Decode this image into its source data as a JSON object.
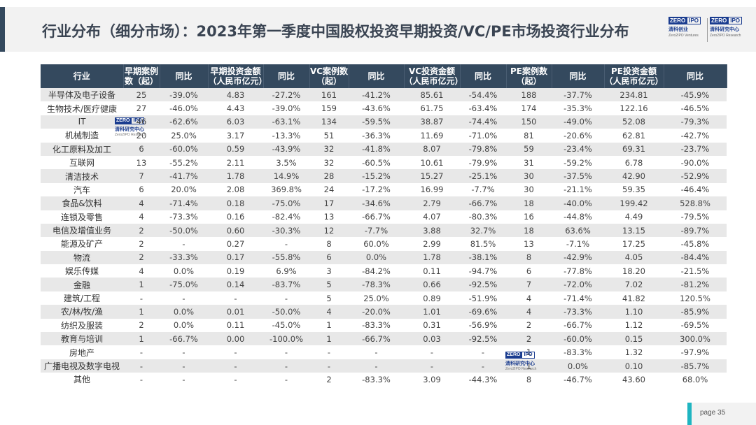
{
  "title": "行业分布（细分市场）：2023年第一季度中国股权投资早期投资/VC/PE市场投资行业分布",
  "logo": {
    "zero": "ZERO",
    "ipo": "IPO",
    "cn_left": "清科创业",
    "cn_right": "清科研究中心",
    "en_left": "Zero2IPO Ventures",
    "en_right": "Zero2IPO Research"
  },
  "watermark": {
    "zero": "ZERO",
    "ipo": "IPO",
    "cn": "清科研究中心",
    "en": "Zero2IPO Research"
  },
  "headers": [
    "行业",
    "早期案例数（起）",
    "同比",
    "早期投资金额（人民币亿元）",
    "同比",
    "VC案例数（起）",
    "同比",
    "VC投资金额（人民币亿元）",
    "同比",
    "PE案例数（起）",
    "同比",
    "PE投资金额（人民币亿元）",
    "同比"
  ],
  "rows": [
    [
      "半导体及电子设备",
      "25",
      "-39.0%",
      "4.83",
      "-27.2%",
      "161",
      "-41.2%",
      "85.61",
      "-54.4%",
      "188",
      "-37.7%",
      "234.81",
      "-45.9%"
    ],
    [
      "生物技术/医疗健康",
      "27",
      "-46.0%",
      "4.43",
      "-39.0%",
      "159",
      "-43.6%",
      "61.75",
      "-63.4%",
      "174",
      "-35.3%",
      "122.16",
      "-46.5%"
    ],
    [
      "IT",
      "46",
      "-62.6%",
      "6.03",
      "-63.1%",
      "134",
      "-59.5%",
      "38.87",
      "-74.4%",
      "150",
      "-49.0%",
      "52.08",
      "-79.3%"
    ],
    [
      "机械制造",
      "20",
      "25.0%",
      "3.17",
      "-13.3%",
      "51",
      "-36.3%",
      "11.69",
      "-71.0%",
      "81",
      "-20.6%",
      "62.81",
      "-42.7%"
    ],
    [
      "化工原料及加工",
      "6",
      "-60.0%",
      "0.59",
      "-43.9%",
      "32",
      "-41.8%",
      "8.07",
      "-79.8%",
      "59",
      "-23.4%",
      "69.31",
      "-23.7%"
    ],
    [
      "互联网",
      "13",
      "-55.2%",
      "2.11",
      "3.5%",
      "32",
      "-60.5%",
      "10.61",
      "-79.9%",
      "31",
      "-59.2%",
      "6.78",
      "-90.0%"
    ],
    [
      "清洁技术",
      "7",
      "-41.7%",
      "1.78",
      "14.9%",
      "28",
      "-15.2%",
      "15.27",
      "-25.1%",
      "30",
      "-37.5%",
      "42.90",
      "-52.9%"
    ],
    [
      "汽车",
      "6",
      "20.0%",
      "2.08",
      "369.8%",
      "24",
      "-17.2%",
      "16.99",
      "-7.7%",
      "30",
      "-21.1%",
      "59.35",
      "-46.4%"
    ],
    [
      "食品&饮料",
      "4",
      "-71.4%",
      "0.18",
      "-75.0%",
      "17",
      "-34.6%",
      "2.79",
      "-66.7%",
      "18",
      "-40.0%",
      "199.42",
      "528.8%"
    ],
    [
      "连锁及零售",
      "4",
      "-73.3%",
      "0.16",
      "-82.4%",
      "13",
      "-66.7%",
      "4.07",
      "-80.3%",
      "16",
      "-44.8%",
      "4.49",
      "-79.5%"
    ],
    [
      "电信及增值业务",
      "2",
      "-50.0%",
      "0.60",
      "-30.3%",
      "12",
      "-7.7%",
      "3.88",
      "32.7%",
      "18",
      "63.6%",
      "13.15",
      "-89.7%"
    ],
    [
      "能源及矿产",
      "2",
      "-",
      "0.27",
      "-",
      "8",
      "60.0%",
      "2.99",
      "81.5%",
      "13",
      "-7.1%",
      "17.25",
      "-45.8%"
    ],
    [
      "物流",
      "2",
      "-33.3%",
      "0.17",
      "-55.8%",
      "6",
      "0.0%",
      "1.78",
      "-38.1%",
      "8",
      "-42.9%",
      "4.05",
      "-84.4%"
    ],
    [
      "娱乐传媒",
      "4",
      "0.0%",
      "0.19",
      "6.9%",
      "3",
      "-84.2%",
      "0.11",
      "-94.7%",
      "6",
      "-77.8%",
      "18.20",
      "-21.5%"
    ],
    [
      "金融",
      "1",
      "-75.0%",
      "0.14",
      "-83.7%",
      "5",
      "-78.3%",
      "0.66",
      "-92.5%",
      "7",
      "-72.0%",
      "7.02",
      "-81.2%"
    ],
    [
      "建筑/工程",
      "-",
      "-",
      "-",
      "-",
      "5",
      "25.0%",
      "0.89",
      "-51.9%",
      "4",
      "-71.4%",
      "41.82",
      "120.5%"
    ],
    [
      "农/林/牧/渔",
      "1",
      "0.0%",
      "0.01",
      "-50.0%",
      "4",
      "-20.0%",
      "1.01",
      "-69.6%",
      "4",
      "-73.3%",
      "1.10",
      "-85.9%"
    ],
    [
      "纺织及服装",
      "2",
      "0.0%",
      "0.11",
      "-45.0%",
      "1",
      "-83.3%",
      "0.31",
      "-56.9%",
      "2",
      "-66.7%",
      "1.12",
      "-69.5%"
    ],
    [
      "教育与培训",
      "1",
      "-66.7%",
      "0.00",
      "-100.0%",
      "1",
      "-66.7%",
      "0.03",
      "-92.5%",
      "2",
      "-60.0%",
      "0.15",
      "300.0%"
    ],
    [
      "房地产",
      "-",
      "-",
      "-",
      "-",
      "-",
      "-",
      "-",
      "-",
      "1",
      "-83.3%",
      "1.32",
      "-97.9%"
    ],
    [
      "广播电视及数字电视",
      "-",
      "-",
      "-",
      "-",
      "-",
      "-",
      "-",
      "-",
      "1",
      "0.0%",
      "0.10",
      "-85.7%"
    ],
    [
      "其他",
      "-",
      "-",
      "-",
      "-",
      "2",
      "-83.3%",
      "3.09",
      "-44.3%",
      "8",
      "-46.7%",
      "43.60",
      "68.0%"
    ]
  ],
  "page": "page  35",
  "colors": {
    "header_bg": "#34495e",
    "stripe": "#e8e8e8",
    "accent": "#1fb5c1",
    "brand": "#1a3c8f"
  }
}
